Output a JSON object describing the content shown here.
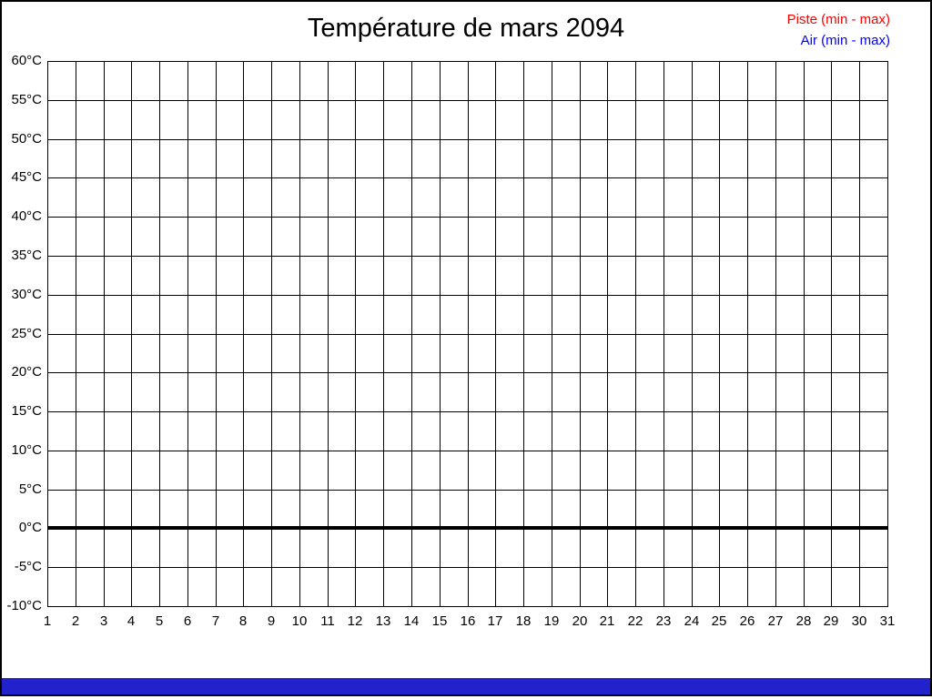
{
  "canvas": {
    "background": "#ffffff",
    "frame_border_color": "#000000"
  },
  "chart_data": {
    "type": "line",
    "title": "Température de mars 2094",
    "xlabel": "",
    "ylabel": "",
    "x_categories": [
      1,
      2,
      3,
      4,
      5,
      6,
      7,
      8,
      9,
      10,
      11,
      12,
      13,
      14,
      15,
      16,
      17,
      18,
      19,
      20,
      21,
      22,
      23,
      24,
      25,
      26,
      27,
      28,
      29,
      30,
      31
    ],
    "y_ticks": [
      60,
      55,
      50,
      45,
      40,
      35,
      30,
      25,
      20,
      15,
      10,
      5,
      0,
      -5,
      -10
    ],
    "y_tick_suffix": "°C",
    "ylim": [
      -10,
      60
    ],
    "xlim": [
      1,
      31
    ],
    "grid": "on",
    "grid_color": "#000000",
    "zero_line": {
      "value": 0,
      "color": "#000000",
      "thickness_px": 4
    },
    "legend": {
      "position": "top-right",
      "entries": [
        {
          "label": "Piste (min - max)",
          "color": "#ff0000"
        },
        {
          "label": "Air (min - max)",
          "color": "#0000ff"
        }
      ]
    },
    "series": []
  },
  "bottom_bar": {
    "color": "#2222cd"
  }
}
